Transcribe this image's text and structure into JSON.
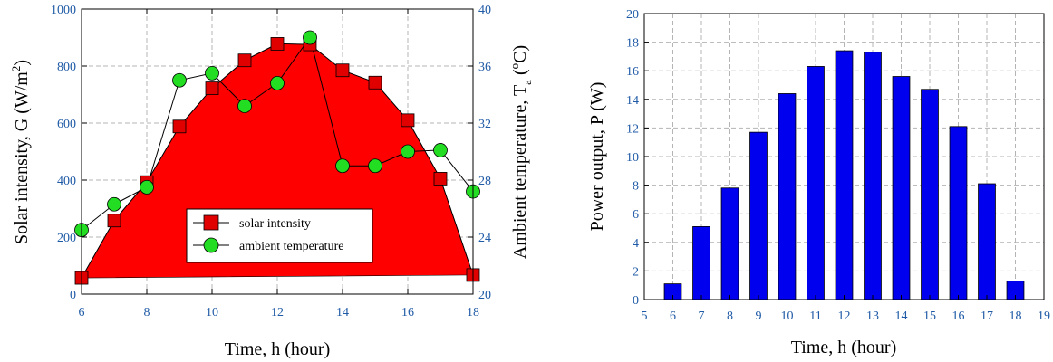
{
  "colors": {
    "solar_fill": "#ff0000",
    "marker_square": "#e00000",
    "marker_circle": "#22dd22",
    "bar": "#0000ee",
    "tick_label": "#1f5aa6",
    "grid": "#b4b4b4"
  },
  "chart_data": [
    {
      "type": "area",
      "xlabel": "Time, h (hour)",
      "ylabel_left": "Solar intensity, G (W/m",
      "ylabel_left_sup": "2",
      "ylabel_left_end": ")",
      "ylabel_right": "Ambient temperature, T",
      "ylabel_right_sub": "a",
      "ylabel_right_mid": " (",
      "ylabel_right_sup": "o",
      "ylabel_right_end": "C)",
      "xlim": [
        6,
        18
      ],
      "ylim_left": [
        0,
        1000
      ],
      "ylim_right": [
        20,
        40
      ],
      "x_ticks": [
        "6",
        "8",
        "10",
        "12",
        "14",
        "16",
        "18"
      ],
      "y_ticks_left": [
        "0",
        "200",
        "400",
        "600",
        "800",
        "1000"
      ],
      "y_ticks_right": [
        "20",
        "24",
        "28",
        "32",
        "36",
        "40"
      ],
      "grid": true,
      "legend_position": "lower-center",
      "series": [
        {
          "name": "solar intensity",
          "axis": "left",
          "marker": "square",
          "x": [
            6,
            7,
            8,
            9,
            10,
            11,
            12,
            13,
            14,
            15,
            16,
            17,
            18
          ],
          "values": [
            57,
            258,
            393,
            588,
            722,
            820,
            878,
            876,
            785,
            742,
            610,
            405,
            67
          ]
        },
        {
          "name": "ambient temperature",
          "axis": "right",
          "marker": "circle",
          "x": [
            6,
            7,
            8,
            9,
            10,
            11,
            12,
            13,
            14,
            15,
            16,
            17,
            18
          ],
          "values": [
            24.5,
            26.3,
            27.5,
            35.0,
            35.5,
            33.2,
            34.8,
            38.0,
            29.0,
            29.0,
            30.0,
            30.1,
            27.2
          ]
        }
      ]
    },
    {
      "type": "bar",
      "xlabel": "Time, h (hour)",
      "ylabel": "Power output, P (W)",
      "xlim": [
        5,
        19
      ],
      "ylim": [
        0,
        20
      ],
      "x_ticks": [
        "5",
        "6",
        "7",
        "8",
        "9",
        "10",
        "11",
        "12",
        "13",
        "14",
        "15",
        "16",
        "17",
        "18",
        "19"
      ],
      "y_ticks": [
        "0",
        "2",
        "4",
        "6",
        "8",
        "10",
        "12",
        "14",
        "16",
        "18",
        "20"
      ],
      "grid": true,
      "categories": [
        6,
        7,
        8,
        9,
        10,
        11,
        12,
        13,
        14,
        15,
        16,
        17,
        18
      ],
      "values": [
        1.1,
        5.1,
        7.8,
        11.7,
        14.4,
        16.3,
        17.4,
        17.3,
        15.6,
        14.7,
        12.1,
        8.1,
        1.3
      ]
    }
  ]
}
